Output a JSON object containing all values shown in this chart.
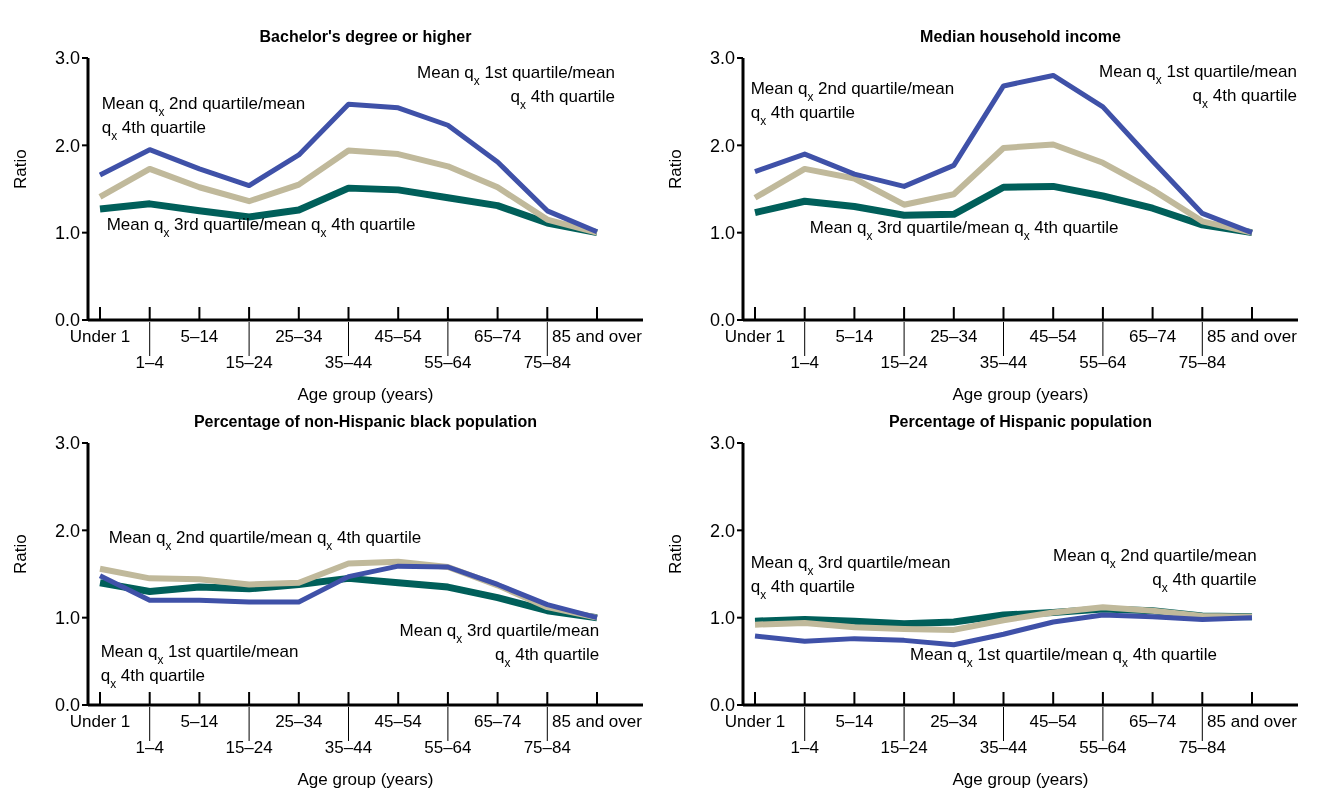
{
  "chart_data": [
    {
      "type": "line",
      "title": "Bachelor's degree or higher",
      "xlabel": "Age group (years)",
      "ylabel": "Ratio",
      "categories": [
        "Under 1",
        "1–4",
        "5–14",
        "15–24",
        "25–34",
        "35–44",
        "45–54",
        "55–64",
        "65–74",
        "75–84",
        "85 and over"
      ],
      "ylim": [
        0,
        3
      ],
      "yticks": [
        {
          "value": 0,
          "label": "0.0"
        },
        {
          "value": 1,
          "label": "1.0"
        },
        {
          "value": 2,
          "label": "2.0"
        },
        {
          "value": 3,
          "label": "3.0"
        }
      ],
      "series": [
        {
          "name": "Mean q$_{x}$ 1st quartile/mean q$_{x}$ 4th quartile",
          "color": "#3f51a8",
          "values": [
            1.66,
            1.95,
            1.73,
            1.54,
            1.89,
            2.47,
            2.43,
            2.23,
            1.81,
            1.25,
            1.01
          ]
        },
        {
          "name": "Mean q$_{x}$ 2nd quartile/mean q$_{x}$ 4th quartile",
          "color": "#c0b99b",
          "values": [
            1.41,
            1.73,
            1.52,
            1.36,
            1.55,
            1.94,
            1.9,
            1.76,
            1.52,
            1.15,
            1.0
          ]
        },
        {
          "name": "Mean q$_{x}$ 3rd quartile/mean q$_{x}$ 4th quartile",
          "color": "#005f5a",
          "values": [
            1.27,
            1.33,
            1.25,
            1.18,
            1.26,
            1.51,
            1.49,
            1.4,
            1.31,
            1.11,
            1.0
          ]
        }
      ]
    },
    {
      "type": "line",
      "title": "Median household income",
      "xlabel": "Age group (years)",
      "ylabel": "Ratio",
      "categories": [
        "Under 1",
        "1–4",
        "5–14",
        "15–24",
        "25–34",
        "35–44",
        "45–54",
        "55–64",
        "65–74",
        "75–84",
        "85 and over"
      ],
      "ylim": [
        0,
        3
      ],
      "yticks": [
        {
          "value": 0,
          "label": "0.0"
        },
        {
          "value": 1,
          "label": "1.0"
        },
        {
          "value": 2,
          "label": "2.0"
        },
        {
          "value": 3,
          "label": "3.0"
        }
      ],
      "series": [
        {
          "name": "Mean q$_{x}$ 1st quartile/mean q$_{x}$ 4th quartile",
          "color": "#3f51a8",
          "values": [
            1.7,
            1.9,
            1.67,
            1.53,
            1.77,
            2.68,
            2.8,
            2.44,
            1.82,
            1.22,
            1.0
          ]
        },
        {
          "name": "Mean q$_{x}$ 2nd quartile/mean q$_{x}$ 4th quartile",
          "color": "#c0b99b",
          "values": [
            1.4,
            1.73,
            1.62,
            1.32,
            1.44,
            1.97,
            2.01,
            1.8,
            1.49,
            1.13,
            1.0
          ]
        },
        {
          "name": "Mean q$_{x}$ 3rd quartile/mean q$_{x}$ 4th quartile",
          "color": "#005f5a",
          "values": [
            1.23,
            1.36,
            1.3,
            1.2,
            1.21,
            1.52,
            1.53,
            1.42,
            1.28,
            1.09,
            1.0
          ]
        }
      ]
    },
    {
      "type": "line",
      "title": "Percentage of non-Hispanic black population",
      "xlabel": "Age group (years)",
      "ylabel": "Ratio",
      "categories": [
        "Under 1",
        "1–4",
        "5–14",
        "15–24",
        "25–34",
        "35–44",
        "45–54",
        "55–64",
        "65–74",
        "75–84",
        "85 and over"
      ],
      "ylim": [
        0,
        3
      ],
      "yticks": [
        {
          "value": 0,
          "label": "0.0"
        },
        {
          "value": 1,
          "label": "1.0"
        },
        {
          "value": 2,
          "label": "2.0"
        },
        {
          "value": 3,
          "label": "3.0"
        }
      ],
      "series": [
        {
          "name": "Mean q$_{x}$ 1st quartile/mean q$_{x}$ 4th quartile",
          "color": "#3f51a8",
          "values": [
            1.48,
            1.2,
            1.2,
            1.18,
            1.18,
            1.47,
            1.59,
            1.58,
            1.38,
            1.15,
            1.0
          ]
        },
        {
          "name": "Mean q$_{x}$ 2nd quartile/mean q$_{x}$ 4th quartile",
          "color": "#c0b99b",
          "values": [
            1.56,
            1.45,
            1.44,
            1.38,
            1.4,
            1.62,
            1.64,
            1.58,
            1.37,
            1.12,
            1.0
          ]
        },
        {
          "name": "Mean q$_{x}$ 3rd quartile/mean q$_{x}$ 4th quartile",
          "color": "#005f5a",
          "values": [
            1.4,
            1.3,
            1.35,
            1.33,
            1.38,
            1.45,
            1.4,
            1.35,
            1.23,
            1.08,
            1.0
          ]
        }
      ]
    },
    {
      "type": "line",
      "title": "Percentage of Hispanic population",
      "xlabel": "Age group (years)",
      "ylabel": "Ratio",
      "categories": [
        "Under 1",
        "1–4",
        "5–14",
        "15–24",
        "25–34",
        "35–44",
        "45–54",
        "55–64",
        "65–74",
        "75–84",
        "85 and over"
      ],
      "ylim": [
        0,
        3
      ],
      "yticks": [
        {
          "value": 0,
          "label": "0.0"
        },
        {
          "value": 1,
          "label": "1.0"
        },
        {
          "value": 2,
          "label": "2.0"
        },
        {
          "value": 3,
          "label": "3.0"
        }
      ],
      "series": [
        {
          "name": "Mean q$_{x}$ 1st quartile/mean q$_{x}$ 4th quartile",
          "color": "#3f51a8",
          "values": [
            0.79,
            0.73,
            0.76,
            0.74,
            0.69,
            0.81,
            0.95,
            1.03,
            1.01,
            0.98,
            1.0
          ]
        },
        {
          "name": "Mean q$_{x}$ 2nd quartile/mean q$_{x}$ 4th quartile",
          "color": "#c0b99b",
          "values": [
            0.92,
            0.94,
            0.89,
            0.87,
            0.86,
            0.97,
            1.06,
            1.12,
            1.08,
            1.02,
            1.01
          ]
        },
        {
          "name": "Mean q$_{x}$ 3rd quartile/mean q$_{x}$ 4th quartile",
          "color": "#005f5a",
          "values": [
            0.96,
            0.98,
            0.96,
            0.93,
            0.95,
            1.03,
            1.06,
            1.1,
            1.08,
            1.02,
            1.01
          ]
        }
      ]
    }
  ]
}
